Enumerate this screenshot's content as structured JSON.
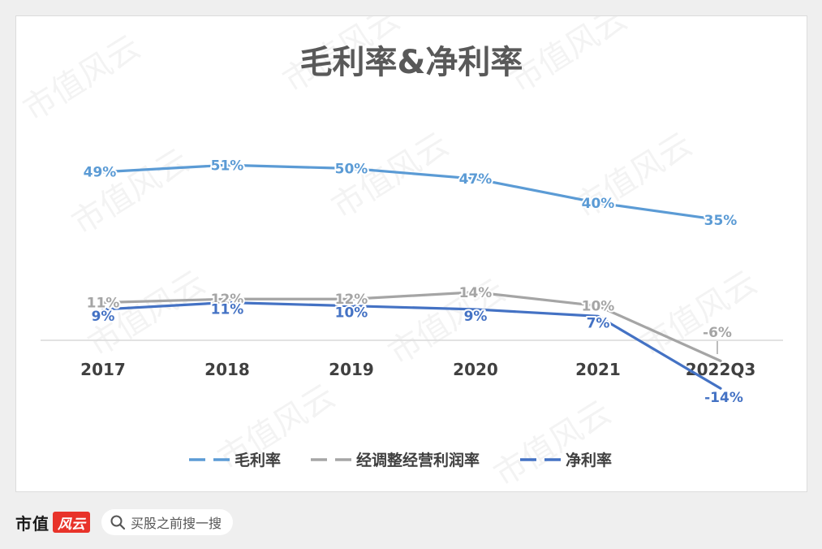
{
  "chart_data": {
    "type": "line",
    "title": "毛利率&净利率",
    "categories": [
      "2017",
      "2018",
      "2019",
      "2020",
      "2021",
      "2022Q3"
    ],
    "ylim": [
      -20,
      60
    ],
    "grid": false,
    "legend_position": "bottom",
    "series": [
      {
        "name": "毛利率",
        "color": "#5b9bd5",
        "values": [
          49,
          51,
          50,
          47,
          40,
          35
        ],
        "labels": [
          "49%",
          "51%",
          "50%",
          "47%",
          "40%",
          "35%"
        ]
      },
      {
        "name": "经调整经营利润率",
        "color": "#a5a5a5",
        "values": [
          11,
          12,
          12,
          14,
          10,
          -6
        ],
        "labels": [
          "11%",
          "12%",
          "12%",
          "14%",
          "10%",
          "-6%"
        ]
      },
      {
        "name": "净利率",
        "color": "#4472c4",
        "values": [
          9,
          11,
          10,
          9,
          7,
          -14
        ],
        "labels": [
          "9%",
          "11%",
          "10%",
          "9%",
          "7%",
          "-14%"
        ]
      }
    ]
  },
  "watermark": "市值风云",
  "footer": {
    "brand": "市值",
    "badge": "风云",
    "search_icon": "search-icon",
    "search_placeholder": "买股之前搜一搜"
  }
}
